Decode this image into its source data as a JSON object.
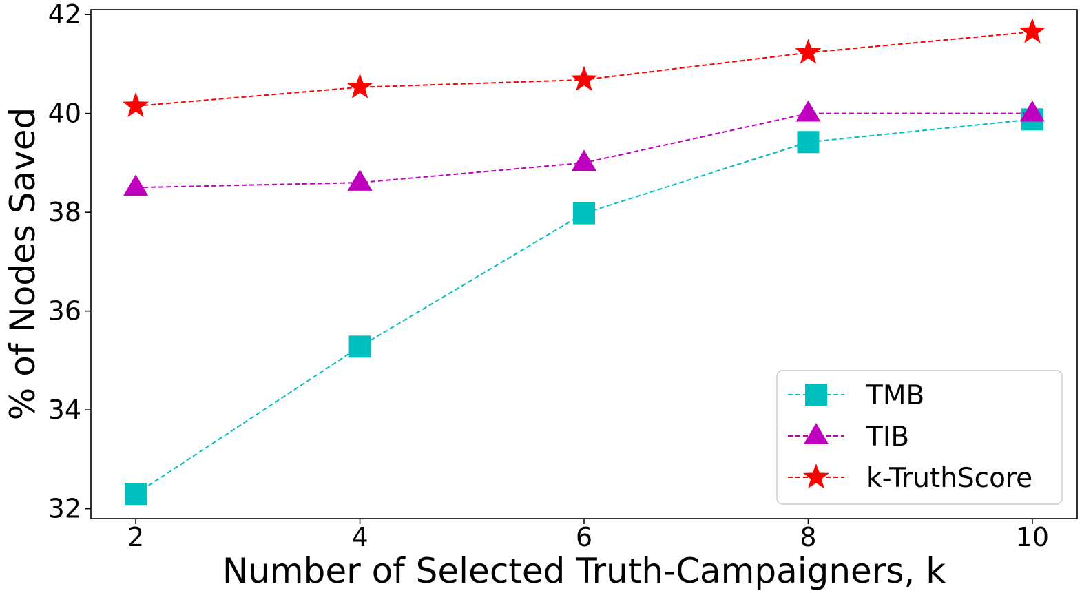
{
  "chart_data": {
    "type": "line",
    "title": "",
    "xlabel": "Number of Selected Truth-Campaigners, k",
    "ylabel": "% of Nodes Saved",
    "x": [
      2,
      4,
      6,
      8,
      10
    ],
    "xticks": [
      "2",
      "4",
      "6",
      "8",
      "10"
    ],
    "yticks": [
      "32",
      "34",
      "36",
      "38",
      "40",
      "42"
    ],
    "xlim": [
      1.6,
      10.4
    ],
    "ylim": [
      31.8,
      42.1
    ],
    "grid": false,
    "legend_position": "bottom-right",
    "series": [
      {
        "name": "TMB",
        "values": [
          32.3,
          35.28,
          37.98,
          39.42,
          39.88
        ],
        "color": "#00bfbf",
        "marker": "square",
        "linestyle": "dashed"
      },
      {
        "name": "TIB",
        "values": [
          38.5,
          38.6,
          39.0,
          40.0,
          40.0
        ],
        "color": "#bf00bf",
        "marker": "triangle",
        "linestyle": "dashed"
      },
      {
        "name": "k-TruthScore",
        "values": [
          40.15,
          40.53,
          40.68,
          41.23,
          41.65
        ],
        "color": "#ff0000",
        "marker": "star",
        "linestyle": "dashed"
      }
    ]
  }
}
